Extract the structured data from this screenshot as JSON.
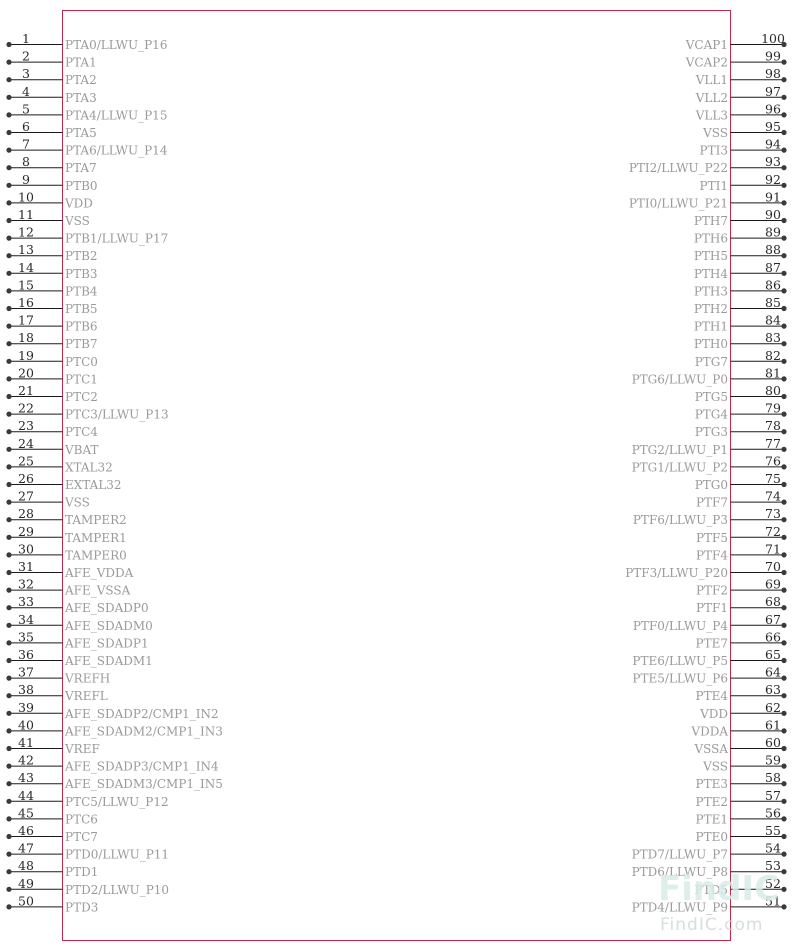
{
  "component": {
    "body_color": "#c0284a",
    "pins_left": [
      {
        "num": "1",
        "name": "PTA0/LLWU_P16"
      },
      {
        "num": "2",
        "name": "PTA1"
      },
      {
        "num": "3",
        "name": "PTA2"
      },
      {
        "num": "4",
        "name": "PTA3"
      },
      {
        "num": "5",
        "name": "PTA4/LLWU_P15"
      },
      {
        "num": "6",
        "name": "PTA5"
      },
      {
        "num": "7",
        "name": "PTA6/LLWU_P14"
      },
      {
        "num": "8",
        "name": "PTA7"
      },
      {
        "num": "9",
        "name": "PTB0"
      },
      {
        "num": "10",
        "name": "VDD"
      },
      {
        "num": "11",
        "name": "VSS"
      },
      {
        "num": "12",
        "name": "PTB1/LLWU_P17"
      },
      {
        "num": "13",
        "name": "PTB2"
      },
      {
        "num": "14",
        "name": "PTB3"
      },
      {
        "num": "15",
        "name": "PTB4"
      },
      {
        "num": "16",
        "name": "PTB5"
      },
      {
        "num": "17",
        "name": "PTB6"
      },
      {
        "num": "18",
        "name": "PTB7"
      },
      {
        "num": "19",
        "name": "PTC0"
      },
      {
        "num": "20",
        "name": "PTC1"
      },
      {
        "num": "21",
        "name": "PTC2"
      },
      {
        "num": "22",
        "name": "PTC3/LLWU_P13"
      },
      {
        "num": "23",
        "name": "PTC4"
      },
      {
        "num": "24",
        "name": "VBAT"
      },
      {
        "num": "25",
        "name": "XTAL32"
      },
      {
        "num": "26",
        "name": "EXTAL32"
      },
      {
        "num": "27",
        "name": "VSS"
      },
      {
        "num": "28",
        "name": "TAMPER2"
      },
      {
        "num": "29",
        "name": "TAMPER1"
      },
      {
        "num": "30",
        "name": "TAMPER0"
      },
      {
        "num": "31",
        "name": "AFE_VDDA"
      },
      {
        "num": "32",
        "name": "AFE_VSSA"
      },
      {
        "num": "33",
        "name": "AFE_SDADP0"
      },
      {
        "num": "34",
        "name": "AFE_SDADM0"
      },
      {
        "num": "35",
        "name": "AFE_SDADP1"
      },
      {
        "num": "36",
        "name": "AFE_SDADM1"
      },
      {
        "num": "37",
        "name": "VREFH"
      },
      {
        "num": "38",
        "name": "VREFL"
      },
      {
        "num": "39",
        "name": "AFE_SDADP2/CMP1_IN2"
      },
      {
        "num": "40",
        "name": "AFE_SDADM2/CMP1_IN3"
      },
      {
        "num": "41",
        "name": "VREF"
      },
      {
        "num": "42",
        "name": "AFE_SDADP3/CMP1_IN4"
      },
      {
        "num": "43",
        "name": "AFE_SDADM3/CMP1_IN5"
      },
      {
        "num": "44",
        "name": "PTC5/LLWU_P12"
      },
      {
        "num": "45",
        "name": "PTC6"
      },
      {
        "num": "46",
        "name": "PTC7"
      },
      {
        "num": "47",
        "name": "PTD0/LLWU_P11"
      },
      {
        "num": "48",
        "name": "PTD1"
      },
      {
        "num": "49",
        "name": "PTD2/LLWU_P10"
      },
      {
        "num": "50",
        "name": "PTD3"
      }
    ],
    "pins_right": [
      {
        "num": "100",
        "name": "VCAP1"
      },
      {
        "num": "99",
        "name": "VCAP2"
      },
      {
        "num": "98",
        "name": "VLL1"
      },
      {
        "num": "97",
        "name": "VLL2"
      },
      {
        "num": "96",
        "name": "VLL3"
      },
      {
        "num": "95",
        "name": "VSS"
      },
      {
        "num": "94",
        "name": "PTI3"
      },
      {
        "num": "93",
        "name": "PTI2/LLWU_P22"
      },
      {
        "num": "92",
        "name": "PTI1"
      },
      {
        "num": "91",
        "name": "PTI0/LLWU_P21"
      },
      {
        "num": "90",
        "name": "PTH7"
      },
      {
        "num": "89",
        "name": "PTH6"
      },
      {
        "num": "88",
        "name": "PTH5"
      },
      {
        "num": "87",
        "name": "PTH4"
      },
      {
        "num": "86",
        "name": "PTH3"
      },
      {
        "num": "85",
        "name": "PTH2"
      },
      {
        "num": "84",
        "name": "PTH1"
      },
      {
        "num": "83",
        "name": "PTH0"
      },
      {
        "num": "82",
        "name": "PTG7"
      },
      {
        "num": "81",
        "name": "PTG6/LLWU_P0"
      },
      {
        "num": "80",
        "name": "PTG5"
      },
      {
        "num": "79",
        "name": "PTG4"
      },
      {
        "num": "78",
        "name": "PTG3"
      },
      {
        "num": "77",
        "name": "PTG2/LLWU_P1"
      },
      {
        "num": "76",
        "name": "PTG1/LLWU_P2"
      },
      {
        "num": "75",
        "name": "PTG0"
      },
      {
        "num": "74",
        "name": "PTF7"
      },
      {
        "num": "73",
        "name": "PTF6/LLWU_P3"
      },
      {
        "num": "72",
        "name": "PTF5"
      },
      {
        "num": "71",
        "name": "PTF4"
      },
      {
        "num": "70",
        "name": "PTF3/LLWU_P20"
      },
      {
        "num": "69",
        "name": "PTF2"
      },
      {
        "num": "68",
        "name": "PTF1"
      },
      {
        "num": "67",
        "name": "PTF0/LLWU_P4"
      },
      {
        "num": "66",
        "name": "PTE7"
      },
      {
        "num": "65",
        "name": "PTE6/LLWU_P5"
      },
      {
        "num": "64",
        "name": "PTE5/LLWU_P6"
      },
      {
        "num": "63",
        "name": "PTE4"
      },
      {
        "num": "62",
        "name": "VDD"
      },
      {
        "num": "61",
        "name": "VDDA"
      },
      {
        "num": "60",
        "name": "VSSA"
      },
      {
        "num": "59",
        "name": "VSS"
      },
      {
        "num": "58",
        "name": "PTE3"
      },
      {
        "num": "57",
        "name": "PTE2"
      },
      {
        "num": "56",
        "name": "PTE1"
      },
      {
        "num": "55",
        "name": "PTE0"
      },
      {
        "num": "54",
        "name": "PTD7/LLWU_P7"
      },
      {
        "num": "53",
        "name": "PTD6/LLWU_P8"
      },
      {
        "num": "52",
        "name": "PTD5"
      },
      {
        "num": "51",
        "name": "PTD4/LLWU_P9"
      }
    ]
  },
  "watermark": {
    "main": "FindIC",
    "sub": "FindIC.com"
  }
}
